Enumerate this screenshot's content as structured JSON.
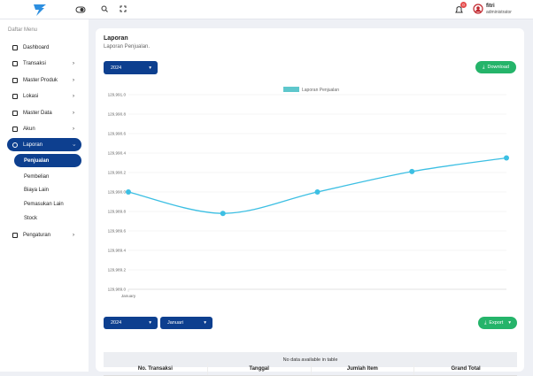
{
  "topbar": {
    "notification_count": "0",
    "user_name": "fitri",
    "user_role": "administrator"
  },
  "sidebar": {
    "heading": "Daftar Menu",
    "items": [
      {
        "label": "Dashboard"
      },
      {
        "label": "Transaksi",
        "arrow": true
      },
      {
        "label": "Master Produk",
        "arrow": true
      },
      {
        "label": "Lokasi",
        "arrow": true
      },
      {
        "label": "Master Data",
        "arrow": true
      },
      {
        "label": "Akun",
        "arrow": true
      },
      {
        "label": "Laporan",
        "arrow": true,
        "active": true,
        "submenu": [
          {
            "label": "Penjualan",
            "active": true
          },
          {
            "label": "Pembelian"
          },
          {
            "label": "Biaya Lain"
          },
          {
            "label": "Pemasukan Lain"
          },
          {
            "label": "Stock"
          }
        ]
      },
      {
        "label": "Pengaturan",
        "arrow": true
      }
    ]
  },
  "page": {
    "title": "Laporan",
    "subtitle": "Laporan Penjualan.",
    "year_filter": "2024",
    "download_button": "Download"
  },
  "chart_data": {
    "type": "line",
    "categories": [
      "January",
      null,
      null,
      null,
      null
    ],
    "series": [
      {
        "name": "Laporan Penjualan",
        "color": "#3cbfe3",
        "legend_color": "#5ec7cc",
        "values": [
          129990.0,
          129989.78,
          129990.0,
          129990.21,
          129990.35
        ]
      }
    ],
    "ylim": [
      129989.0,
      129991.0
    ],
    "yticks": [
      {
        "value": 129989.0,
        "label": "129,989.0"
      },
      {
        "value": 129989.2,
        "label": "129,989.2"
      },
      {
        "value": 129989.4,
        "label": "129,989.4"
      },
      {
        "value": 129989.6,
        "label": "129,989.6"
      },
      {
        "value": 129989.8,
        "label": "129,989.8"
      },
      {
        "value": 129990.0,
        "label": "129,990.0"
      },
      {
        "value": 129990.2,
        "label": "129,990.2"
      },
      {
        "value": 129990.4,
        "label": "129,990.4"
      },
      {
        "value": 129990.6,
        "label": "129,990.6"
      },
      {
        "value": 129990.8,
        "label": "129,990.8"
      },
      {
        "value": 129991.0,
        "label": "129,991.0"
      }
    ],
    "grid": true,
    "legend": "top"
  },
  "table": {
    "year_filter": "2024",
    "month_filter": "Januari",
    "export_button": "Export",
    "columns": [
      "No. Transaksi",
      "Tanggal",
      "Jumlah Item",
      "Grand Total"
    ],
    "empty_message": "No data available in table"
  }
}
